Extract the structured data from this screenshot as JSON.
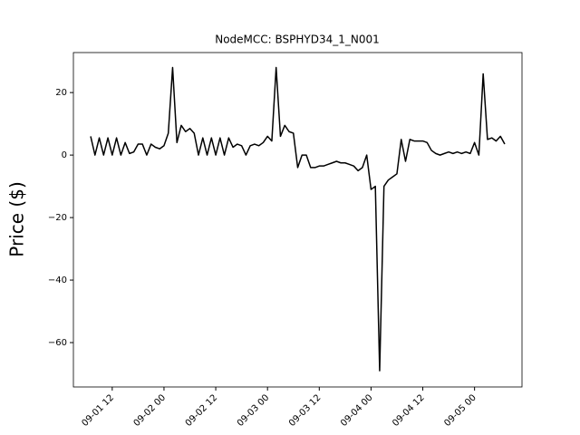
{
  "chart_data": {
    "type": "line",
    "title": "NodeMCC: BSPHYD34_1_N001",
    "y_label": "Price ($)",
    "x": [
      "09-01 07",
      "09-01 08",
      "09-01 09",
      "09-01 10",
      "09-01 11",
      "09-01 12",
      "09-01 13",
      "09-01 14",
      "09-01 15",
      "09-01 16",
      "09-01 17",
      "09-01 18",
      "09-01 19",
      "09-01 20",
      "09-01 21",
      "09-01 22",
      "09-01 23",
      "09-02 00",
      "09-02 01",
      "09-02 02",
      "09-02 03",
      "09-02 04",
      "09-02 05",
      "09-02 06",
      "09-02 07",
      "09-02 08",
      "09-02 09",
      "09-02 10",
      "09-02 11",
      "09-02 12",
      "09-02 13",
      "09-02 14",
      "09-02 15",
      "09-02 16",
      "09-02 17",
      "09-02 18",
      "09-02 19",
      "09-02 20",
      "09-02 21",
      "09-02 22",
      "09-02 23",
      "09-03 00",
      "09-03 01",
      "09-03 02",
      "09-03 03",
      "09-03 04",
      "09-03 05",
      "09-03 06",
      "09-03 07",
      "09-03 08",
      "09-03 09",
      "09-03 10",
      "09-03 11",
      "09-03 12",
      "09-03 13",
      "09-03 14",
      "09-03 15",
      "09-03 16",
      "09-03 17",
      "09-03 18",
      "09-03 19",
      "09-03 20",
      "09-03 21",
      "09-03 22",
      "09-03 23",
      "09-04 00",
      "09-04 01",
      "09-04 02",
      "09-04 03",
      "09-04 04",
      "09-04 05",
      "09-04 06",
      "09-04 07",
      "09-04 08",
      "09-04 09",
      "09-04 10",
      "09-04 11",
      "09-04 12",
      "09-04 13",
      "09-04 14",
      "09-04 15",
      "09-04 16",
      "09-04 17",
      "09-04 18",
      "09-04 19",
      "09-04 20",
      "09-04 21",
      "09-04 22",
      "09-04 23",
      "09-05 00",
      "09-05 01",
      "09-05 02",
      "09-05 03",
      "09-05 04",
      "09-05 05",
      "09-05 06",
      "09-05 07"
    ],
    "series": [
      {
        "name": "BSPHYD34_1_N001",
        "color": "#000000",
        "values": [
          6,
          0,
          5.5,
          0,
          5.5,
          0,
          5.5,
          0,
          4,
          0.5,
          1,
          3.5,
          3.5,
          0,
          3.5,
          2.5,
          2,
          3,
          7,
          28,
          4,
          9.5,
          7.5,
          8.5,
          7,
          0,
          5.5,
          0,
          5.5,
          0,
          5.5,
          0,
          5.5,
          2.5,
          3.5,
          3,
          0,
          3,
          3.5,
          3,
          4,
          6,
          4.5,
          28,
          6,
          9.5,
          7.5,
          7,
          -4,
          0,
          0,
          -4,
          -4,
          -3.5,
          -3.5,
          -3,
          -2.5,
          -2,
          -2.5,
          -2.5,
          -3,
          -3.5,
          -5,
          -4,
          0,
          -11,
          -10,
          -69,
          -10,
          -8,
          -7,
          -6,
          5,
          -2,
          5,
          4.5,
          4.5,
          4.5,
          4,
          1.5,
          0.5,
          0,
          0.5,
          1,
          0.5,
          1,
          0.5,
          1,
          0.5,
          4,
          0,
          26,
          5,
          5.5,
          4.5,
          6,
          3.5
        ]
      }
    ],
    "xlim": [
      "09-01 03",
      "09-05 11"
    ],
    "xticks": [
      "09-01 12",
      "09-02 00",
      "09-02 12",
      "09-03 00",
      "09-03 12",
      "09-04 00",
      "09-04 12",
      "09-05 00"
    ],
    "ylim": [
      -74.2,
      32.8
    ],
    "yticks": [
      {
        "value": -60,
        "label": "−60"
      },
      {
        "value": -40,
        "label": "−40"
      },
      {
        "value": -20,
        "label": "−20"
      },
      0,
      20
    ]
  }
}
